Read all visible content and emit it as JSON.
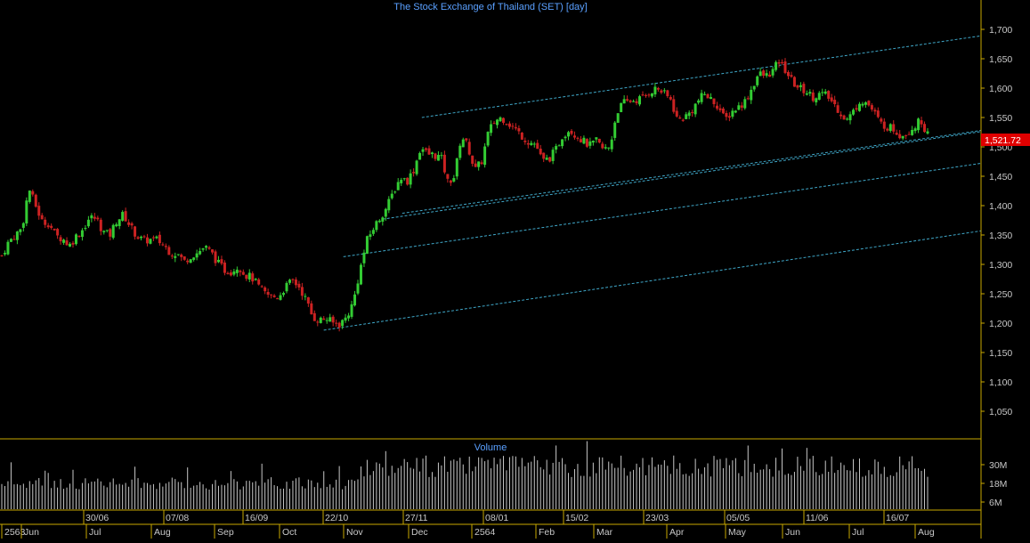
{
  "chart_data": {
    "type": "candlestick",
    "title": "The Stock Exchange of Thailand (SET) [day]",
    "price_axis": {
      "ylim": [
        1010,
        1720
      ],
      "ticks": [
        "1,050",
        "1,100",
        "1,150",
        "1,200",
        "1,250",
        "1,300",
        "1,350",
        "1,400",
        "1,450",
        "1,500",
        "1,550",
        "1,600",
        "1,650",
        "1,700"
      ],
      "tick_values": [
        1050,
        1100,
        1150,
        1200,
        1250,
        1300,
        1350,
        1400,
        1450,
        1500,
        1550,
        1600,
        1650,
        1700
      ]
    },
    "last_price": {
      "label": "1,521.72",
      "value": 1521.72
    },
    "volume": {
      "title": "Volume",
      "ticks": [
        "6M",
        "18M",
        "30M"
      ],
      "tick_values": [
        6,
        18,
        30
      ]
    },
    "date_labels": [
      "30/06",
      "07/08",
      "16/09",
      "22/10",
      "27/11",
      "08/01",
      "15/02",
      "23/03",
      "05/05",
      "11/06",
      "16/07"
    ],
    "month_labels": [
      "2563",
      "Jun",
      "Jul",
      "Aug",
      "Sep",
      "Oct",
      "Nov",
      "Dec",
      "2564",
      "Feb",
      "Mar",
      "Apr",
      "May",
      "Jun",
      "Jul",
      "Aug"
    ],
    "close_path": [
      1315,
      1338,
      1350,
      1362,
      1430,
      1400,
      1372,
      1370,
      1348,
      1344,
      1332,
      1348,
      1360,
      1380,
      1378,
      1355,
      1350,
      1375,
      1385,
      1365,
      1348,
      1340,
      1342,
      1342,
      1332,
      1320,
      1318,
      1305,
      1315,
      1320,
      1330,
      1320,
      1302,
      1290,
      1288,
      1298,
      1282,
      1278,
      1262,
      1250,
      1244,
      1246,
      1262,
      1272,
      1262,
      1240,
      1210,
      1205,
      1208,
      1200,
      1198,
      1210,
      1235,
      1290,
      1340,
      1362,
      1380,
      1398,
      1425,
      1448,
      1442,
      1462,
      1500,
      1488,
      1486,
      1482,
      1440,
      1450,
      1520,
      1500,
      1460,
      1475,
      1525,
      1545,
      1550,
      1540,
      1530,
      1518,
      1508,
      1505,
      1475,
      1480,
      1495,
      1520,
      1530,
      1520,
      1510,
      1502,
      1510,
      1495,
      1500,
      1560,
      1575,
      1578,
      1580,
      1585,
      1595,
      1600,
      1590,
      1580,
      1545,
      1550,
      1560,
      1578,
      1590,
      1580,
      1570,
      1545,
      1560,
      1568,
      1578,
      1600,
      1625,
      1620,
      1628,
      1645,
      1630,
      1610,
      1600,
      1595,
      1585,
      1590,
      1588,
      1575,
      1560,
      1545,
      1560,
      1580,
      1575,
      1560,
      1540,
      1535,
      1530,
      1520,
      1525,
      1535,
      1545,
      1521.72
    ],
    "channel_lines": [
      {
        "x1": 0.33,
        "y1": 1188,
        "x2": 1.0,
        "y2": 1357
      },
      {
        "x1": 0.35,
        "y1": 1313,
        "x2": 1.0,
        "y2": 1472
      },
      {
        "x1": 0.39,
        "y1": 1377,
        "x2": 1.0,
        "y2": 1526
      },
      {
        "x1": 0.41,
        "y1": 1387,
        "x2": 1.0,
        "y2": 1528
      },
      {
        "x1": 0.43,
        "y1": 1550,
        "x2": 1.0,
        "y2": 1689
      }
    ],
    "grid": false
  },
  "colors": {
    "background": "#000000",
    "up": "#33cc33",
    "down": "#cc2222",
    "title": "#5aa0ff",
    "axis_text": "#c8c8c8",
    "axis_line": "#c9a800",
    "channel": "#3fa7c8",
    "last_price_bg": "#e00000",
    "volume_bar": "#c8c8c8"
  }
}
